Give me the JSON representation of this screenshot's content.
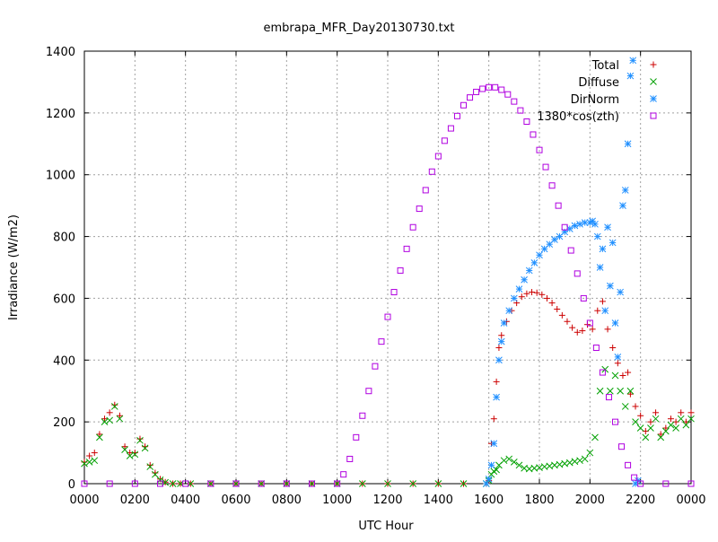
{
  "chart_data": {
    "type": "scatter",
    "title": "embrapa_MFR_Day20130730.txt",
    "xlabel": "UTC Hour",
    "ylabel": "Irradiance (W/m2)",
    "xlim": [
      0,
      24
    ],
    "ylim": [
      0,
      1400
    ],
    "x_ticks": [
      0,
      2,
      4,
      6,
      8,
      10,
      12,
      14,
      16,
      18,
      20,
      22,
      24
    ],
    "x_tick_labels": [
      "0000",
      "0200",
      "0400",
      "0600",
      "0800",
      "1000",
      "1200",
      "1400",
      "1600",
      "1800",
      "2000",
      "2200",
      "0000"
    ],
    "y_ticks": [
      0,
      200,
      400,
      600,
      800,
      1000,
      1200,
      1400
    ],
    "y_tick_labels": [
      "0",
      "200",
      "400",
      "600",
      "800",
      "1000",
      "1200",
      "1400"
    ],
    "grid": true,
    "legend_position": "top-right",
    "series": [
      {
        "name": "Total",
        "marker": "plus",
        "color": "#cc0000",
        "points": [
          [
            0.0,
            70
          ],
          [
            0.2,
            90
          ],
          [
            0.4,
            100
          ],
          [
            0.6,
            160
          ],
          [
            0.8,
            210
          ],
          [
            1.0,
            230
          ],
          [
            1.2,
            255
          ],
          [
            1.4,
            220
          ],
          [
            1.6,
            120
          ],
          [
            1.8,
            100
          ],
          [
            2.0,
            100
          ],
          [
            2.2,
            145
          ],
          [
            2.4,
            120
          ],
          [
            2.6,
            60
          ],
          [
            2.8,
            35
          ],
          [
            3.0,
            15
          ],
          [
            3.2,
            5
          ],
          [
            3.5,
            0
          ],
          [
            3.8,
            0
          ],
          [
            4.2,
            0
          ],
          [
            5.0,
            0
          ],
          [
            6.0,
            0
          ],
          [
            7.0,
            0
          ],
          [
            8.0,
            0
          ],
          [
            9.0,
            0
          ],
          [
            10.0,
            0
          ],
          [
            11.0,
            0
          ],
          [
            12.0,
            0
          ],
          [
            13.0,
            0
          ],
          [
            14.0,
            0
          ],
          [
            15.0,
            0
          ],
          [
            15.9,
            0
          ],
          [
            16.0,
            10
          ],
          [
            16.1,
            130
          ],
          [
            16.2,
            210
          ],
          [
            16.3,
            330
          ],
          [
            16.4,
            440
          ],
          [
            16.5,
            480
          ],
          [
            16.7,
            525
          ],
          [
            16.9,
            560
          ],
          [
            17.1,
            585
          ],
          [
            17.3,
            605
          ],
          [
            17.5,
            615
          ],
          [
            17.7,
            620
          ],
          [
            17.9,
            618
          ],
          [
            18.1,
            612
          ],
          [
            18.3,
            600
          ],
          [
            18.5,
            585
          ],
          [
            18.7,
            565
          ],
          [
            18.9,
            545
          ],
          [
            19.1,
            525
          ],
          [
            19.3,
            505
          ],
          [
            19.5,
            490
          ],
          [
            19.7,
            495
          ],
          [
            19.9,
            515
          ],
          [
            20.1,
            500
          ],
          [
            20.3,
            560
          ],
          [
            20.5,
            590
          ],
          [
            20.7,
            500
          ],
          [
            20.9,
            440
          ],
          [
            21.1,
            390
          ],
          [
            21.3,
            350
          ],
          [
            21.5,
            360
          ],
          [
            21.6,
            290
          ],
          [
            21.8,
            250
          ],
          [
            22.0,
            220
          ],
          [
            22.2,
            170
          ],
          [
            22.4,
            200
          ],
          [
            22.6,
            230
          ],
          [
            22.8,
            160
          ],
          [
            23.0,
            180
          ],
          [
            23.2,
            210
          ],
          [
            23.4,
            200
          ],
          [
            23.6,
            230
          ],
          [
            23.8,
            200
          ],
          [
            24.0,
            230
          ]
        ]
      },
      {
        "name": "Diffuse",
        "marker": "x",
        "color": "#00a000",
        "points": [
          [
            0.0,
            65
          ],
          [
            0.2,
            70
          ],
          [
            0.4,
            75
          ],
          [
            0.6,
            150
          ],
          [
            0.8,
            200
          ],
          [
            1.0,
            205
          ],
          [
            1.2,
            250
          ],
          [
            1.4,
            210
          ],
          [
            1.6,
            110
          ],
          [
            1.8,
            90
          ],
          [
            2.0,
            95
          ],
          [
            2.2,
            140
          ],
          [
            2.4,
            115
          ],
          [
            2.6,
            55
          ],
          [
            2.8,
            30
          ],
          [
            3.0,
            12
          ],
          [
            3.2,
            4
          ],
          [
            3.5,
            0
          ],
          [
            3.8,
            0
          ],
          [
            4.2,
            0
          ],
          [
            5.0,
            0
          ],
          [
            6.0,
            0
          ],
          [
            7.0,
            0
          ],
          [
            8.0,
            0
          ],
          [
            9.0,
            0
          ],
          [
            10.0,
            0
          ],
          [
            11.0,
            0
          ],
          [
            12.0,
            0
          ],
          [
            13.0,
            0
          ],
          [
            14.0,
            0
          ],
          [
            15.0,
            0
          ],
          [
            15.9,
            0
          ],
          [
            16.0,
            10
          ],
          [
            16.1,
            30
          ],
          [
            16.2,
            40
          ],
          [
            16.3,
            45
          ],
          [
            16.4,
            60
          ],
          [
            16.6,
            75
          ],
          [
            16.8,
            80
          ],
          [
            17.0,
            70
          ],
          [
            17.2,
            60
          ],
          [
            17.4,
            50
          ],
          [
            17.6,
            48
          ],
          [
            17.8,
            50
          ],
          [
            18.0,
            52
          ],
          [
            18.2,
            55
          ],
          [
            18.4,
            57
          ],
          [
            18.6,
            60
          ],
          [
            18.8,
            62
          ],
          [
            19.0,
            65
          ],
          [
            19.2,
            68
          ],
          [
            19.4,
            72
          ],
          [
            19.6,
            75
          ],
          [
            19.8,
            80
          ],
          [
            20.0,
            100
          ],
          [
            20.2,
            150
          ],
          [
            20.4,
            300
          ],
          [
            20.6,
            370
          ],
          [
            20.8,
            300
          ],
          [
            21.0,
            350
          ],
          [
            21.2,
            300
          ],
          [
            21.4,
            250
          ],
          [
            21.6,
            300
          ],
          [
            21.8,
            200
          ],
          [
            22.0,
            180
          ],
          [
            22.2,
            150
          ],
          [
            22.4,
            180
          ],
          [
            22.6,
            210
          ],
          [
            22.8,
            150
          ],
          [
            23.0,
            170
          ],
          [
            23.2,
            190
          ],
          [
            23.4,
            180
          ],
          [
            23.6,
            210
          ],
          [
            23.8,
            190
          ],
          [
            24.0,
            210
          ]
        ]
      },
      {
        "name": "DirNorm",
        "marker": "star",
        "color": "#1f8fff",
        "points": [
          [
            15.9,
            0
          ],
          [
            16.0,
            15
          ],
          [
            16.1,
            60
          ],
          [
            16.2,
            130
          ],
          [
            16.3,
            280
          ],
          [
            16.4,
            400
          ],
          [
            16.5,
            460
          ],
          [
            16.6,
            520
          ],
          [
            16.8,
            560
          ],
          [
            17.0,
            600
          ],
          [
            17.2,
            630
          ],
          [
            17.4,
            660
          ],
          [
            17.6,
            690
          ],
          [
            17.8,
            715
          ],
          [
            18.0,
            740
          ],
          [
            18.2,
            760
          ],
          [
            18.4,
            775
          ],
          [
            18.6,
            790
          ],
          [
            18.8,
            800
          ],
          [
            19.0,
            815
          ],
          [
            19.2,
            825
          ],
          [
            19.4,
            835
          ],
          [
            19.6,
            840
          ],
          [
            19.8,
            845
          ],
          [
            20.0,
            845
          ],
          [
            20.1,
            850
          ],
          [
            20.2,
            840
          ],
          [
            20.3,
            800
          ],
          [
            20.4,
            700
          ],
          [
            20.5,
            760
          ],
          [
            20.6,
            560
          ],
          [
            20.7,
            830
          ],
          [
            20.8,
            640
          ],
          [
            20.9,
            780
          ],
          [
            21.0,
            520
          ],
          [
            21.1,
            410
          ],
          [
            21.2,
            620
          ],
          [
            21.3,
            900
          ],
          [
            21.4,
            950
          ],
          [
            21.5,
            1100
          ],
          [
            21.6,
            1320
          ],
          [
            21.7,
            1370
          ],
          [
            21.8,
            0
          ],
          [
            21.9,
            10
          ]
        ]
      },
      {
        "name": "1380*cos(zth)",
        "marker": "square",
        "color": "#b000e0",
        "points": [
          [
            0.0,
            0
          ],
          [
            1.0,
            0
          ],
          [
            2.0,
            0
          ],
          [
            3.0,
            0
          ],
          [
            4.0,
            0
          ],
          [
            5.0,
            0
          ],
          [
            6.0,
            0
          ],
          [
            7.0,
            0
          ],
          [
            8.0,
            0
          ],
          [
            9.0,
            0
          ],
          [
            10.0,
            0
          ],
          [
            10.25,
            30
          ],
          [
            10.5,
            80
          ],
          [
            10.75,
            150
          ],
          [
            11.0,
            220
          ],
          [
            11.25,
            300
          ],
          [
            11.5,
            380
          ],
          [
            11.75,
            460
          ],
          [
            12.0,
            540
          ],
          [
            12.25,
            620
          ],
          [
            12.5,
            690
          ],
          [
            12.75,
            760
          ],
          [
            13.0,
            830
          ],
          [
            13.25,
            890
          ],
          [
            13.5,
            950
          ],
          [
            13.75,
            1010
          ],
          [
            14.0,
            1060
          ],
          [
            14.25,
            1110
          ],
          [
            14.5,
            1150
          ],
          [
            14.75,
            1190
          ],
          [
            15.0,
            1225
          ],
          [
            15.25,
            1250
          ],
          [
            15.5,
            1268
          ],
          [
            15.75,
            1278
          ],
          [
            16.0,
            1283
          ],
          [
            16.25,
            1283
          ],
          [
            16.5,
            1275
          ],
          [
            16.75,
            1260
          ],
          [
            17.0,
            1237
          ],
          [
            17.25,
            1208
          ],
          [
            17.5,
            1172
          ],
          [
            17.75,
            1130
          ],
          [
            18.0,
            1080
          ],
          [
            18.25,
            1025
          ],
          [
            18.5,
            965
          ],
          [
            18.75,
            900
          ],
          [
            19.0,
            830
          ],
          [
            19.25,
            755
          ],
          [
            19.5,
            680
          ],
          [
            19.75,
            600
          ],
          [
            20.0,
            520
          ],
          [
            20.25,
            440
          ],
          [
            20.5,
            360
          ],
          [
            20.75,
            280
          ],
          [
            21.0,
            200
          ],
          [
            21.25,
            120
          ],
          [
            21.5,
            60
          ],
          [
            21.75,
            20
          ],
          [
            22.0,
            0
          ],
          [
            23.0,
            0
          ],
          [
            24.0,
            0
          ]
        ]
      }
    ]
  }
}
